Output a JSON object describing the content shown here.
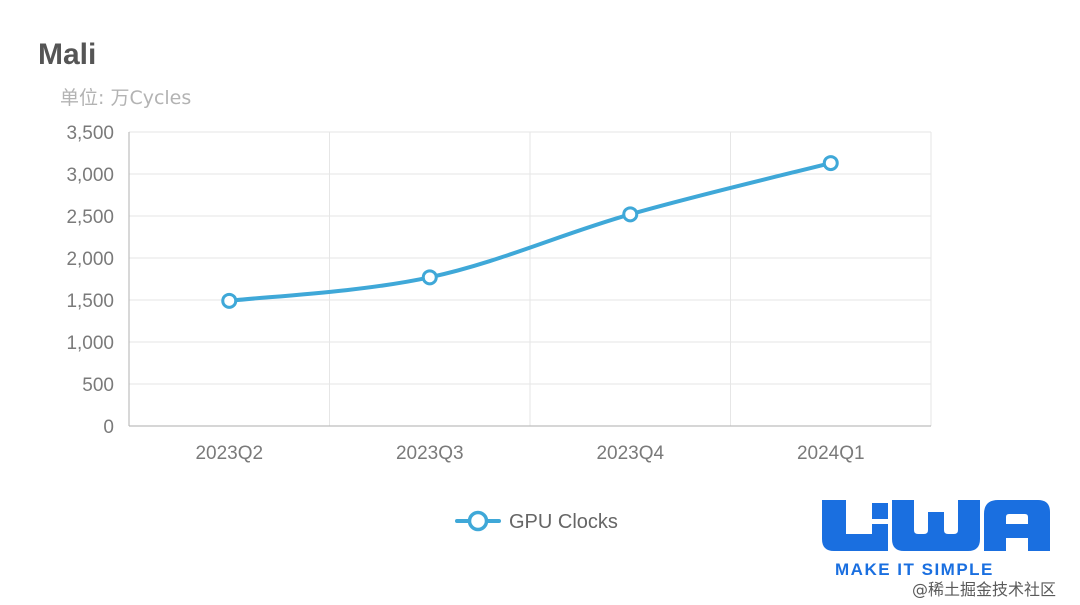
{
  "chart_data": {
    "type": "line",
    "title": "Mali",
    "unit_label": "单位: 万Cycles",
    "categories": [
      "2023Q2",
      "2023Q3",
      "2023Q4",
      "2024Q1"
    ],
    "series": [
      {
        "name": "GPU Clocks",
        "values": [
          1490,
          1770,
          2520,
          3130
        ],
        "color": "#3fa8d8"
      }
    ],
    "y_ticks": [
      "0",
      "500",
      "1,000",
      "1,500",
      "2,000",
      "2,500",
      "3,000",
      "3,500"
    ],
    "ylim": [
      0,
      3500
    ],
    "grid": true,
    "legend_position": "bottom-center",
    "smooth": true
  },
  "logo": {
    "text": "LiWA",
    "tagline": "MAKE IT SIMPLE",
    "color": "#1a6fe0"
  },
  "watermark": "@稀土掘金技术社区",
  "colors": {
    "grid": "#e6e6e6",
    "axis": "#bdbdbd",
    "line": "#3fa8d8"
  }
}
